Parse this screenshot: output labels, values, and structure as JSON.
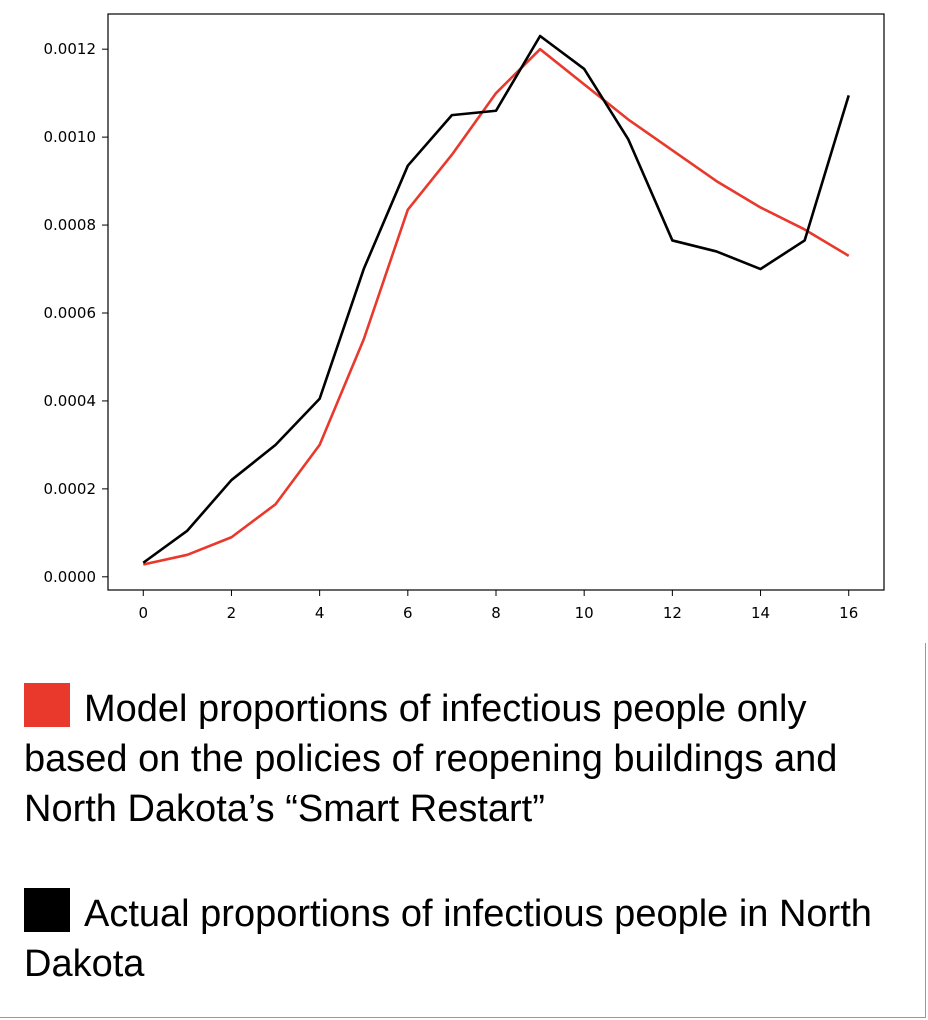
{
  "chart_data": {
    "type": "line",
    "x": [
      0,
      1,
      2,
      3,
      4,
      5,
      6,
      7,
      8,
      9,
      10,
      11,
      12,
      13,
      14,
      15,
      16
    ],
    "series": [
      {
        "name": "Model proportions of infectious people only based on the policies of reopening buildings and North Dakota’s “Smart Restart”",
        "color": "#e8392c",
        "values": [
          2.8e-05,
          5e-05,
          9e-05,
          0.000165,
          0.0003,
          0.00054,
          0.000835,
          0.00096,
          0.0011,
          0.0012,
          0.00112,
          0.00104,
          0.00097,
          0.0009,
          0.00084,
          0.00079,
          0.00073
        ]
      },
      {
        "name": "Actual proportions of infectious people in North Dakota",
        "color": "#000000",
        "values": [
          3.2e-05,
          0.000105,
          0.00022,
          0.0003,
          0.000405,
          0.0007,
          0.000935,
          0.00105,
          0.00106,
          0.00123,
          0.001155,
          0.000995,
          0.000765,
          0.00074,
          0.0007,
          0.000765,
          0.001095
        ]
      }
    ],
    "xticks": [
      "0",
      "2",
      "4",
      "6",
      "8",
      "10",
      "12",
      "14",
      "16"
    ],
    "yticks": [
      "0.0000",
      "0.0002",
      "0.0004",
      "0.0006",
      "0.0008",
      "0.0010",
      "0.0012"
    ],
    "xlim": [
      -0.8,
      16.8
    ],
    "ylim": [
      -3e-05,
      0.00128
    ],
    "grid": false
  },
  "legend": {
    "entries": [
      {
        "color": "#e8392c",
        "label": "Model proportions of infectious people only based on the policies of reopening buildings and North Dakota’s “Smart Restart”"
      },
      {
        "color": "#000000",
        "label": "Actual proportions of infectious people in North Dakota"
      }
    ]
  }
}
